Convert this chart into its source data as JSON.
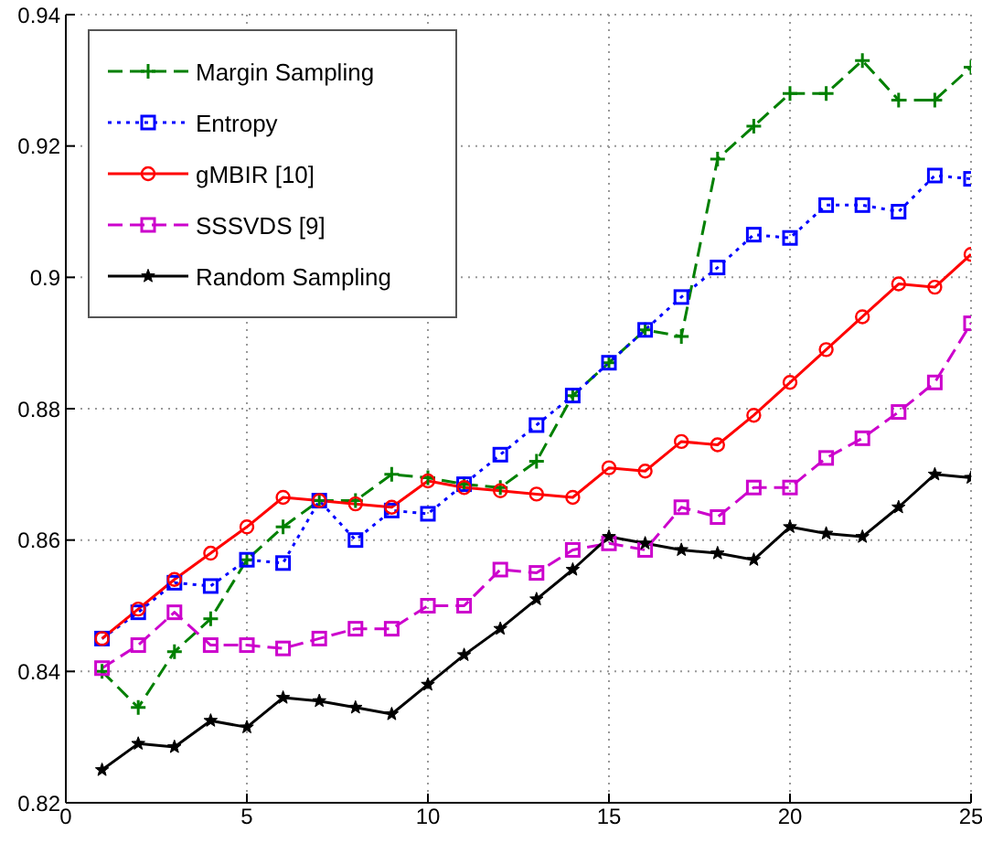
{
  "chart_data": {
    "type": "line",
    "x": [
      1,
      2,
      3,
      4,
      5,
      6,
      7,
      8,
      9,
      10,
      11,
      12,
      13,
      14,
      15,
      16,
      17,
      18,
      19,
      20,
      21,
      22,
      23,
      24,
      25
    ],
    "xlim": [
      0,
      25
    ],
    "xticks": [
      0,
      5,
      10,
      15,
      20,
      25
    ],
    "ylim": [
      0.82,
      0.94
    ],
    "yticks": [
      0.82,
      0.84,
      0.86,
      0.88,
      0.9,
      0.92,
      0.94
    ],
    "grid": true,
    "legend": "top left",
    "series": [
      {
        "name": "Margin Sampling",
        "color": "#008000",
        "marker": "cross",
        "line_style": "dashed",
        "values": [
          0.84,
          0.8345,
          0.843,
          0.848,
          0.857,
          0.862,
          0.866,
          0.866,
          0.87,
          0.8695,
          0.8685,
          0.868,
          0.872,
          0.882,
          0.887,
          0.892,
          0.891,
          0.918,
          0.923,
          0.928,
          0.928,
          0.933,
          0.927,
          0.927,
          0.932
        ]
      },
      {
        "name": "Entropy",
        "color": "#0000ff",
        "marker": "square",
        "line_style": "dotted",
        "values": [
          0.845,
          0.849,
          0.8535,
          0.853,
          0.857,
          0.8565,
          0.866,
          0.86,
          0.8645,
          0.864,
          0.8685,
          0.873,
          0.8775,
          0.882,
          0.887,
          0.892,
          0.897,
          0.9015,
          0.9065,
          0.906,
          0.911,
          0.911,
          0.91,
          0.9155,
          0.915
        ]
      },
      {
        "name": "gMBIR [10]",
        "color": "#ff0000",
        "marker": "circle",
        "line_style": "solid",
        "values": [
          0.845,
          0.8495,
          0.854,
          0.858,
          0.862,
          0.8665,
          0.866,
          0.8655,
          0.865,
          0.869,
          0.868,
          0.8675,
          0.867,
          0.8665,
          0.871,
          0.8705,
          0.875,
          0.8745,
          0.879,
          0.884,
          0.889,
          0.894,
          0.899,
          0.8985,
          0.9035
        ]
      },
      {
        "name": "SSSVDS [9]",
        "color": "#cc00cc",
        "marker": "square",
        "line_style": "dashed",
        "values": [
          0.8405,
          0.844,
          0.849,
          0.844,
          0.844,
          0.8435,
          0.845,
          0.8465,
          0.8465,
          0.85,
          0.85,
          0.8555,
          0.855,
          0.8585,
          0.8595,
          0.8585,
          0.865,
          0.8635,
          0.868,
          0.868,
          0.8725,
          0.8755,
          0.8795,
          0.884,
          0.893
        ]
      },
      {
        "name": "Random Sampling",
        "color": "#000000",
        "marker": "star",
        "line_style": "solid",
        "values": [
          0.825,
          0.829,
          0.8285,
          0.8325,
          0.8315,
          0.836,
          0.8355,
          0.8345,
          0.8335,
          0.838,
          0.8425,
          0.8465,
          0.851,
          0.8555,
          0.8605,
          0.8595,
          0.8585,
          0.858,
          0.857,
          0.862,
          0.861,
          0.8605,
          0.865,
          0.87,
          0.8695
        ]
      }
    ]
  }
}
